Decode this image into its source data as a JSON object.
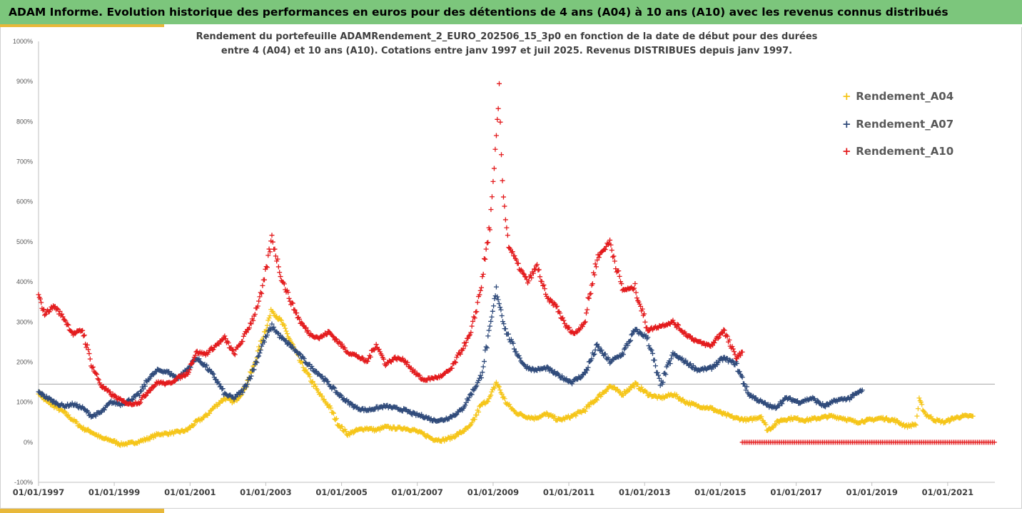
{
  "banner": {
    "title": "ADAM Informe. Evolution historique des performances en euros pour des détentions de 4 ans (A04) à 10 ans (A10) avec les revenus connus distribués"
  },
  "colors": {
    "banner": "#7cc67c",
    "accent": "#e8b83a",
    "a04": "#f5c518",
    "a07": "#2f4a7a",
    "a10": "#e31a1c"
  },
  "chart_data": {
    "type": "scatter",
    "title_line1": "Rendement du portefeuille ADAMRendement_2_EURO_202506_15_3p0  en fonction de la date de début pour des durées",
    "title_line2": "entre 4 (A04) et 10 ans (A10). Cotations entre janv 1997 et juil 2025. Revenus DISTRIBUES depuis janv 1997.",
    "xlabel": "",
    "ylabel": "",
    "xlim": [
      "1997-01-01",
      "2022-04-01"
    ],
    "ylim": [
      -100,
      1000
    ],
    "y_unit": "%",
    "marker": "+",
    "grid": false,
    "legend_position": "top-right",
    "x_ticks": [
      "01/01/1997",
      "01/01/1999",
      "01/01/2001",
      "01/01/2003",
      "01/01/2005",
      "01/01/2007",
      "01/01/2009",
      "01/01/2011",
      "01/01/2013",
      "01/01/2015",
      "01/01/2017",
      "01/01/2019",
      "01/01/2021"
    ],
    "y_ticks": [
      "-100%",
      "0%",
      "100%",
      "200%",
      "300%",
      "400%",
      "500%",
      "600%",
      "700%",
      "800%",
      "900%",
      "1000%"
    ],
    "y_tick_values": [
      -100,
      0,
      100,
      200,
      300,
      400,
      500,
      600,
      700,
      800,
      900,
      1000
    ],
    "reference_line_y": 145,
    "series": [
      {
        "name": "Rendement_A04",
        "color": "#f5c518",
        "points": [
          [
            "1997-01-01",
            125
          ],
          [
            "1997-03-01",
            105
          ],
          [
            "1997-06-01",
            90
          ],
          [
            "1997-09-01",
            75
          ],
          [
            "1997-12-01",
            55
          ],
          [
            "1998-03-01",
            35
          ],
          [
            "1998-06-01",
            25
          ],
          [
            "1998-09-01",
            10
          ],
          [
            "1998-12-01",
            5
          ],
          [
            "1999-03-01",
            -5
          ],
          [
            "1999-06-01",
            -3
          ],
          [
            "1999-09-01",
            2
          ],
          [
            "1999-12-01",
            10
          ],
          [
            "2000-03-01",
            20
          ],
          [
            "2000-06-01",
            22
          ],
          [
            "2000-09-01",
            25
          ],
          [
            "2000-12-01",
            30
          ],
          [
            "2001-03-01",
            50
          ],
          [
            "2001-06-01",
            65
          ],
          [
            "2001-09-01",
            90
          ],
          [
            "2001-12-01",
            110
          ],
          [
            "2002-03-01",
            100
          ],
          [
            "2002-06-01",
            130
          ],
          [
            "2002-09-01",
            185
          ],
          [
            "2002-12-01",
            260
          ],
          [
            "2003-03-01",
            330
          ],
          [
            "2003-06-01",
            300
          ],
          [
            "2003-09-01",
            250
          ],
          [
            "2003-12-01",
            200
          ],
          [
            "2004-03-01",
            160
          ],
          [
            "2004-06-01",
            120
          ],
          [
            "2004-09-01",
            90
          ],
          [
            "2004-12-01",
            45
          ],
          [
            "2005-03-01",
            20
          ],
          [
            "2005-06-01",
            30
          ],
          [
            "2005-09-01",
            35
          ],
          [
            "2005-12-01",
            30
          ],
          [
            "2006-03-01",
            38
          ],
          [
            "2006-06-01",
            35
          ],
          [
            "2006-09-01",
            35
          ],
          [
            "2006-12-01",
            30
          ],
          [
            "2007-03-01",
            20
          ],
          [
            "2007-06-01",
            8
          ],
          [
            "2007-09-01",
            5
          ],
          [
            "2007-12-01",
            12
          ],
          [
            "2008-03-01",
            25
          ],
          [
            "2008-06-01",
            40
          ],
          [
            "2008-09-01",
            90
          ],
          [
            "2008-12-01",
            110
          ],
          [
            "2009-02-01",
            150
          ],
          [
            "2009-05-01",
            100
          ],
          [
            "2009-08-01",
            75
          ],
          [
            "2009-11-01",
            65
          ],
          [
            "2010-02-01",
            60
          ],
          [
            "2010-06-01",
            70
          ],
          [
            "2010-10-01",
            55
          ],
          [
            "2011-02-01",
            65
          ],
          [
            "2011-06-01",
            80
          ],
          [
            "2011-10-01",
            110
          ],
          [
            "2012-02-01",
            140
          ],
          [
            "2012-06-01",
            120
          ],
          [
            "2012-10-01",
            145
          ],
          [
            "2013-02-01",
            120
          ],
          [
            "2013-06-01",
            110
          ],
          [
            "2013-10-01",
            120
          ],
          [
            "2014-02-01",
            100
          ],
          [
            "2014-06-01",
            90
          ],
          [
            "2014-10-01",
            85
          ],
          [
            "2015-02-01",
            70
          ],
          [
            "2015-06-01",
            60
          ],
          [
            "2015-10-01",
            55
          ],
          [
            "2016-02-01",
            65
          ],
          [
            "2016-04-01",
            30
          ],
          [
            "2016-08-01",
            55
          ],
          [
            "2016-12-01",
            60
          ],
          [
            "2017-04-01",
            55
          ],
          [
            "2017-08-01",
            60
          ],
          [
            "2017-12-01",
            65
          ],
          [
            "2018-04-01",
            60
          ],
          [
            "2018-08-01",
            50
          ],
          [
            "2018-12-01",
            55
          ],
          [
            "2019-04-01",
            60
          ],
          [
            "2019-08-01",
            55
          ],
          [
            "2019-12-01",
            40
          ],
          [
            "2020-03-01",
            45
          ],
          [
            "2020-04-01",
            105
          ],
          [
            "2020-06-01",
            70
          ],
          [
            "2020-09-01",
            55
          ],
          [
            "2020-12-01",
            50
          ],
          [
            "2021-03-01",
            60
          ],
          [
            "2021-06-01",
            65
          ],
          [
            "2021-09-01",
            65
          ]
        ]
      },
      {
        "name": "Rendement_A07",
        "color": "#2f4a7a",
        "points": [
          [
            "1997-01-01",
            125
          ],
          [
            "1997-03-01",
            115
          ],
          [
            "1997-06-01",
            100
          ],
          [
            "1997-09-01",
            90
          ],
          [
            "1997-12-01",
            95
          ],
          [
            "1998-03-01",
            85
          ],
          [
            "1998-06-01",
            65
          ],
          [
            "1998-09-01",
            75
          ],
          [
            "1998-12-01",
            100
          ],
          [
            "1999-03-01",
            95
          ],
          [
            "1999-06-01",
            105
          ],
          [
            "1999-09-01",
            120
          ],
          [
            "1999-12-01",
            160
          ],
          [
            "2000-03-01",
            180
          ],
          [
            "2000-06-01",
            175
          ],
          [
            "2000-09-01",
            160
          ],
          [
            "2000-12-01",
            180
          ],
          [
            "2001-03-01",
            210
          ],
          [
            "2001-06-01",
            190
          ],
          [
            "2001-09-01",
            160
          ],
          [
            "2001-12-01",
            120
          ],
          [
            "2002-03-01",
            110
          ],
          [
            "2002-06-01",
            130
          ],
          [
            "2002-09-01",
            180
          ],
          [
            "2002-12-01",
            245
          ],
          [
            "2003-03-01",
            290
          ],
          [
            "2003-06-01",
            260
          ],
          [
            "2003-09-01",
            240
          ],
          [
            "2003-12-01",
            215
          ],
          [
            "2004-03-01",
            190
          ],
          [
            "2004-06-01",
            170
          ],
          [
            "2004-09-01",
            145
          ],
          [
            "2004-12-01",
            120
          ],
          [
            "2005-03-01",
            100
          ],
          [
            "2005-06-01",
            85
          ],
          [
            "2005-09-01",
            80
          ],
          [
            "2005-12-01",
            85
          ],
          [
            "2006-03-01",
            90
          ],
          [
            "2006-06-01",
            85
          ],
          [
            "2006-09-01",
            80
          ],
          [
            "2006-12-01",
            70
          ],
          [
            "2007-03-01",
            65
          ],
          [
            "2007-06-01",
            55
          ],
          [
            "2007-09-01",
            55
          ],
          [
            "2007-12-01",
            65
          ],
          [
            "2008-03-01",
            80
          ],
          [
            "2008-06-01",
            120
          ],
          [
            "2008-09-01",
            160
          ],
          [
            "2008-12-01",
            280
          ],
          [
            "2009-02-01",
            380
          ],
          [
            "2009-05-01",
            280
          ],
          [
            "2009-08-01",
            230
          ],
          [
            "2009-11-01",
            190
          ],
          [
            "2010-02-01",
            180
          ],
          [
            "2010-06-01",
            185
          ],
          [
            "2010-10-01",
            165
          ],
          [
            "2011-02-01",
            150
          ],
          [
            "2011-06-01",
            170
          ],
          [
            "2011-10-01",
            240
          ],
          [
            "2012-02-01",
            200
          ],
          [
            "2012-06-01",
            220
          ],
          [
            "2012-10-01",
            280
          ],
          [
            "2013-02-01",
            260
          ],
          [
            "2013-06-01",
            140
          ],
          [
            "2013-10-01",
            220
          ],
          [
            "2014-02-01",
            200
          ],
          [
            "2014-06-01",
            180
          ],
          [
            "2014-10-01",
            185
          ],
          [
            "2015-02-01",
            210
          ],
          [
            "2015-06-01",
            195
          ],
          [
            "2015-10-01",
            120
          ],
          [
            "2016-02-01",
            100
          ],
          [
            "2016-06-01",
            85
          ],
          [
            "2016-10-01",
            110
          ],
          [
            "2017-02-01",
            100
          ],
          [
            "2017-06-01",
            110
          ],
          [
            "2017-10-01",
            90
          ],
          [
            "2018-02-01",
            105
          ],
          [
            "2018-06-01",
            110
          ],
          [
            "2018-10-01",
            130
          ]
        ]
      },
      {
        "name": "Rendement_A10",
        "color": "#e31a1c",
        "points": [
          [
            "1997-01-01",
            365
          ],
          [
            "1997-03-01",
            320
          ],
          [
            "1997-06-01",
            340
          ],
          [
            "1997-09-01",
            310
          ],
          [
            "1997-12-01",
            270
          ],
          [
            "1998-03-01",
            280
          ],
          [
            "1998-06-01",
            190
          ],
          [
            "1998-09-01",
            140
          ],
          [
            "1998-12-01",
            120
          ],
          [
            "1999-03-01",
            105
          ],
          [
            "1999-06-01",
            95
          ],
          [
            "1999-09-01",
            100
          ],
          [
            "1999-12-01",
            130
          ],
          [
            "2000-03-01",
            150
          ],
          [
            "2000-06-01",
            145
          ],
          [
            "2000-09-01",
            160
          ],
          [
            "2000-12-01",
            170
          ],
          [
            "2001-03-01",
            225
          ],
          [
            "2001-06-01",
            220
          ],
          [
            "2001-09-01",
            240
          ],
          [
            "2001-12-01",
            260
          ],
          [
            "2002-03-01",
            220
          ],
          [
            "2002-06-01",
            260
          ],
          [
            "2002-09-01",
            310
          ],
          [
            "2002-12-01",
            380
          ],
          [
            "2003-03-01",
            510
          ],
          [
            "2003-06-01",
            410
          ],
          [
            "2003-09-01",
            350
          ],
          [
            "2003-12-01",
            300
          ],
          [
            "2004-03-01",
            270
          ],
          [
            "2004-06-01",
            260
          ],
          [
            "2004-09-01",
            275
          ],
          [
            "2004-12-01",
            250
          ],
          [
            "2005-03-01",
            225
          ],
          [
            "2005-06-01",
            215
          ],
          [
            "2005-09-01",
            200
          ],
          [
            "2005-12-01",
            245
          ],
          [
            "2006-03-01",
            195
          ],
          [
            "2006-06-01",
            210
          ],
          [
            "2006-09-01",
            205
          ],
          [
            "2006-12-01",
            175
          ],
          [
            "2007-03-01",
            155
          ],
          [
            "2007-06-01",
            160
          ],
          [
            "2007-09-01",
            165
          ],
          [
            "2007-12-01",
            185
          ],
          [
            "2008-03-01",
            230
          ],
          [
            "2008-06-01",
            270
          ],
          [
            "2008-09-01",
            380
          ],
          [
            "2008-12-01",
            540
          ],
          [
            "2009-01-01",
            640
          ],
          [
            "2009-02-01",
            760
          ],
          [
            "2009-03-01",
            875
          ],
          [
            "2009-04-01",
            650
          ],
          [
            "2009-05-01",
            560
          ],
          [
            "2009-06-01",
            490
          ],
          [
            "2009-09-01",
            440
          ],
          [
            "2009-12-01",
            400
          ],
          [
            "2010-03-01",
            440
          ],
          [
            "2010-06-01",
            360
          ],
          [
            "2010-09-01",
            340
          ],
          [
            "2010-12-01",
            290
          ],
          [
            "2011-03-01",
            270
          ],
          [
            "2011-06-01",
            300
          ],
          [
            "2011-10-01",
            460
          ],
          [
            "2012-02-01",
            500
          ],
          [
            "2012-06-01",
            380
          ],
          [
            "2012-10-01",
            385
          ],
          [
            "2013-02-01",
            280
          ],
          [
            "2013-06-01",
            290
          ],
          [
            "2013-10-01",
            300
          ],
          [
            "2014-02-01",
            270
          ],
          [
            "2014-06-01",
            250
          ],
          [
            "2014-10-01",
            240
          ],
          [
            "2015-02-01",
            280
          ],
          [
            "2015-06-01",
            210
          ],
          [
            "2015-08-01",
            225
          ]
        ],
        "flat_segment": {
          "from": "2015-08-01",
          "to": "2022-04-01",
          "value": 0
        }
      }
    ]
  }
}
